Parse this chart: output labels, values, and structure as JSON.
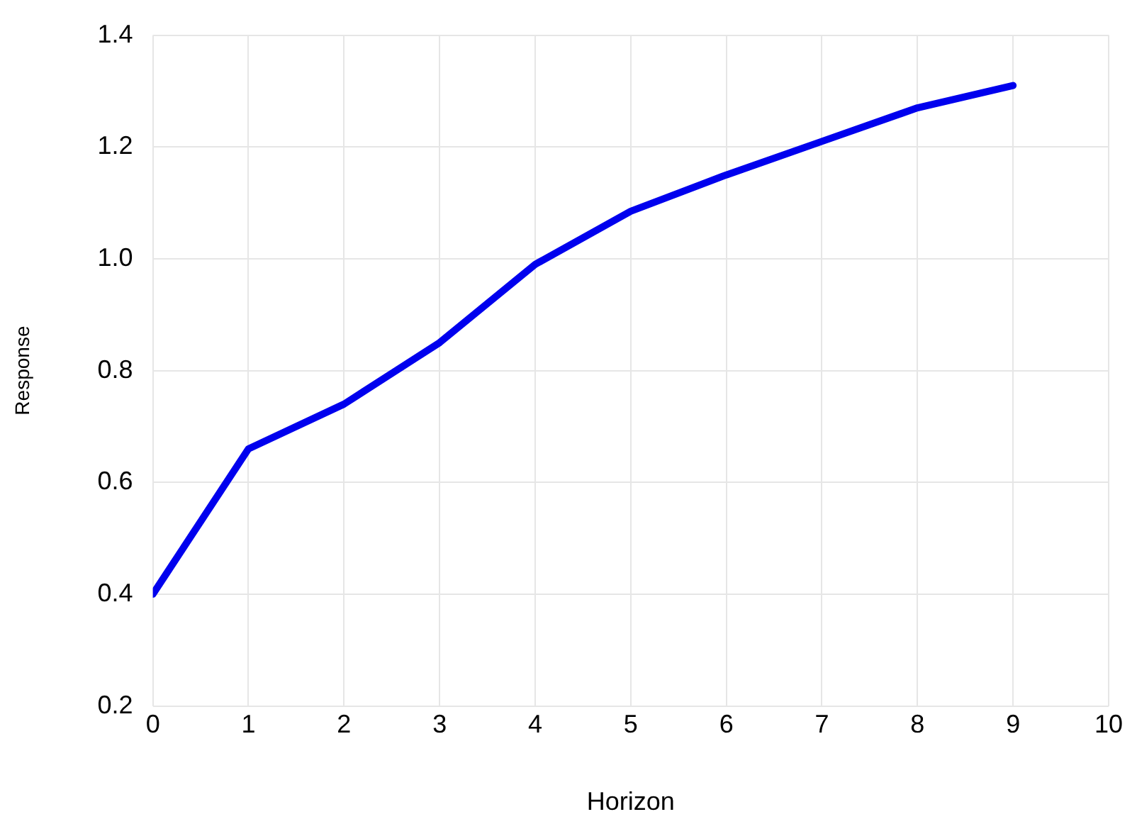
{
  "chart_data": {
    "type": "line",
    "xlabel": "Horizon",
    "ylabel": "Response",
    "x": [
      0,
      1,
      2,
      3,
      4,
      5,
      6,
      7,
      8,
      9
    ],
    "series": [
      {
        "color": "#0000ee",
        "values": [
          0.4,
          0.66,
          0.74,
          0.85,
          0.99,
          1.085,
          1.15,
          1.21,
          1.27,
          1.31
        ]
      }
    ],
    "xlim": [
      0,
      10
    ],
    "xticks": [
      0,
      1,
      2,
      3,
      4,
      5,
      6,
      7,
      8,
      9,
      10
    ],
    "ylim": [
      0.2,
      1.4
    ],
    "yticks": [
      {
        "value": 0.2,
        "label": "0.2"
      },
      {
        "value": 0.4,
        "label": "0.4"
      },
      {
        "value": 0.6,
        "label": "0.6"
      },
      {
        "value": 0.8,
        "label": "0.8"
      },
      {
        "value": 1.0,
        "label": "1.0"
      },
      {
        "value": 1.2,
        "label": "1.2"
      },
      {
        "value": 1.4,
        "label": "1.4"
      }
    ],
    "grid": true,
    "legend": false,
    "marker": "none",
    "line_style": "solid"
  }
}
